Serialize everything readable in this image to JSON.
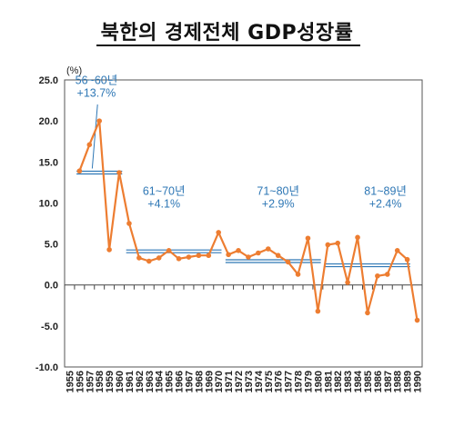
{
  "title": "북한의 경제전체 GDP성장률",
  "chart_data": {
    "type": "line",
    "unit_label": "(%)",
    "ylim": [
      -10,
      25
    ],
    "yticks": [
      "25.0",
      "20.0",
      "15.0",
      "10.0",
      "5.0",
      "0.0",
      "-5.0",
      "-10.0"
    ],
    "x": [
      1955,
      1956,
      1957,
      1958,
      1959,
      1960,
      1961,
      1962,
      1963,
      1964,
      1965,
      1966,
      1967,
      1968,
      1969,
      1970,
      1971,
      1972,
      1973,
      1974,
      1975,
      1976,
      1977,
      1978,
      1979,
      1980,
      1981,
      1982,
      1983,
      1984,
      1985,
      1986,
      1987,
      1988,
      1989,
      1990
    ],
    "series": [
      {
        "color": "#ed7d31",
        "values": [
          null,
          13.9,
          17.1,
          20.0,
          4.3,
          13.7,
          7.5,
          3.3,
          2.9,
          3.3,
          4.2,
          3.2,
          3.4,
          3.6,
          3.6,
          6.4,
          3.7,
          4.2,
          3.4,
          3.9,
          4.4,
          3.6,
          2.8,
          1.3,
          5.7,
          -3.2,
          4.9,
          5.1,
          0.3,
          5.8,
          -3.4,
          1.1,
          1.3,
          4.2,
          3.1,
          -4.3
        ]
      }
    ],
    "averages": [
      {
        "label_years": "56~60년",
        "label_value": "+13.7%",
        "value": 13.7,
        "from": 1956,
        "to": 1960
      },
      {
        "label_years": "61~70년",
        "label_value": "+4.1%",
        "value": 4.1,
        "from": 1961,
        "to": 1970
      },
      {
        "label_years": "71~80년",
        "label_value": "+2.9%",
        "value": 2.9,
        "from": 1971,
        "to": 1980
      },
      {
        "label_years": "81~89년",
        "label_value": "+2.4%",
        "value": 2.4,
        "from": 1981,
        "to": 1989
      }
    ],
    "line_color": "#ed7d31",
    "average_color": "#2e77b5",
    "grid": false
  }
}
